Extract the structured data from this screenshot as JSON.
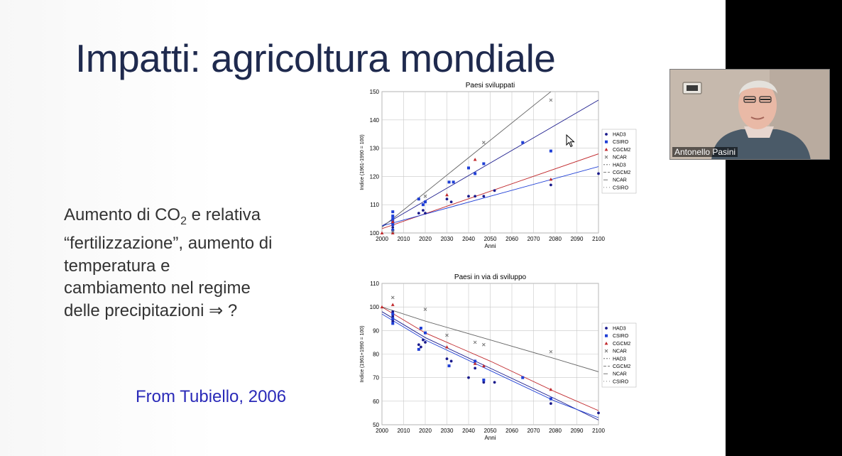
{
  "slide": {
    "title": "Impatti: agricoltura mondiale",
    "body": {
      "line1_pre": "Aumento di CO",
      "line1_sub": "2",
      "line1_post": " e relativa",
      "line2": "“fertilizzazione”, aumento di",
      "line3": "temperatura e",
      "line4": "cambiamento nel regime",
      "line5": "delle precipitazioni ⇒ ?"
    },
    "credit": "From Tubiello, 2006"
  },
  "participant": {
    "name": "Antonello Pasini"
  },
  "colors": {
    "title": "#1f2a4e",
    "credit": "#2a2ab8",
    "HAD3": "#1a1a8c",
    "CSIRO": "#1f3fd6",
    "CGCM2": "#c0282c",
    "NCAR": "#777777"
  },
  "chart_data": [
    {
      "type": "scatter",
      "title": "Paesi sviluppati",
      "xlabel": "Anni",
      "ylabel": "Indice (1961-1990 = 100)",
      "xlim": [
        2000,
        2100
      ],
      "ylim": [
        100,
        150
      ],
      "xticks": [
        "2000",
        "2010",
        "2020",
        "2030",
        "2040",
        "2050",
        "2060",
        "2070",
        "2080",
        "2090",
        "2100"
      ],
      "yticks": [
        "100",
        "110",
        "120",
        "130",
        "140",
        "150"
      ],
      "grid": true,
      "legend_position": "right",
      "legend": [
        "HAD3",
        "CSIRO",
        "CGCM2",
        "NCAR",
        "HAD3",
        "CGCM2",
        "NCAR",
        "CSIRO"
      ],
      "series": [
        {
          "name": "HAD3",
          "marker": "circle",
          "x": [
            2005,
            2005,
            2017,
            2019,
            2020,
            2030,
            2032,
            2040,
            2043,
            2047,
            2052,
            2078,
            2100
          ],
          "y": [
            101,
            102,
            107,
            108,
            107,
            112,
            111,
            113,
            113,
            113,
            115,
            117,
            121
          ]
        },
        {
          "name": "CSIRO",
          "marker": "square",
          "x": [
            2005,
            2005,
            2005,
            2005,
            2005,
            2005,
            2017,
            2019,
            2020,
            2031,
            2033,
            2040,
            2043,
            2047,
            2065,
            2078
          ],
          "y": [
            101,
            103,
            104,
            105,
            106,
            107.5,
            112,
            110,
            111,
            118,
            118,
            123,
            121,
            124.5,
            132,
            129
          ]
        },
        {
          "name": "CGCM2",
          "marker": "triangle",
          "x": [
            2000,
            2005,
            2005,
            2030,
            2043,
            2078
          ],
          "y": [
            100,
            100,
            104,
            113.5,
            126,
            119
          ]
        },
        {
          "name": "NCAR",
          "marker": "x",
          "x": [
            2005,
            2020,
            2047,
            2078
          ],
          "y": [
            100.5,
            113,
            132,
            147
          ]
        }
      ],
      "fit_lines": [
        {
          "name": "HAD3",
          "x": [
            2000,
            2100
          ],
          "y": [
            102.5,
            147
          ]
        },
        {
          "name": "CGCM2",
          "x": [
            2000,
            2100
          ],
          "y": [
            101.5,
            128
          ]
        },
        {
          "name": "NCAR",
          "x": [
            2000,
            2078
          ],
          "y": [
            102,
            150
          ]
        },
        {
          "name": "CSIRO",
          "x": [
            2000,
            2100
          ],
          "y": [
            102.5,
            123.5
          ]
        }
      ]
    },
    {
      "type": "scatter",
      "title": "Paesi in via di sviluppo",
      "xlabel": "Anni",
      "ylabel": "Indice (1961+1990 = 100)",
      "xlim": [
        2000,
        2100
      ],
      "ylim": [
        50,
        110
      ],
      "xticks": [
        "2000",
        "2010",
        "2020",
        "2030",
        "2040",
        "2050",
        "2060",
        "2070",
        "2080",
        "2090",
        "2100"
      ],
      "yticks": [
        "50",
        "60",
        "70",
        "80",
        "90",
        "100",
        "110"
      ],
      "grid": true,
      "legend_position": "right",
      "legend": [
        "HAD3",
        "CSIRO",
        "CGCM2",
        "NCAR",
        "HAD3",
        "CGCM2",
        "NCAR",
        "CSIRO"
      ],
      "series": [
        {
          "name": "HAD3",
          "marker": "circle",
          "x": [
            2005,
            2005,
            2005,
            2017,
            2018,
            2019,
            2020,
            2030,
            2032,
            2040,
            2043,
            2047,
            2052,
            2078,
            2100
          ],
          "y": [
            96,
            94,
            98,
            84,
            83,
            86,
            85,
            78,
            77,
            70,
            74,
            68,
            68,
            59,
            55
          ]
        },
        {
          "name": "CSIRO",
          "marker": "square",
          "x": [
            2005,
            2005,
            2005,
            2017,
            2018,
            2020,
            2031,
            2043,
            2047,
            2065,
            2078
          ],
          "y": [
            93,
            95,
            97,
            82,
            91,
            89,
            75,
            77,
            69,
            70,
            61
          ]
        },
        {
          "name": "CGCM2",
          "marker": "triangle",
          "x": [
            2000,
            2005,
            2030,
            2043,
            2047,
            2078
          ],
          "y": [
            100,
            101,
            83,
            76,
            75,
            65
          ]
        },
        {
          "name": "NCAR",
          "marker": "x",
          "x": [
            2005,
            2020,
            2030,
            2043,
            2047,
            2078
          ],
          "y": [
            104,
            99,
            88,
            85,
            84,
            81
          ]
        }
      ],
      "fit_lines": [
        {
          "name": "HAD3",
          "x": [
            2000,
            2020,
            2050,
            2080,
            2100
          ],
          "y": [
            98,
            87,
            74,
            61,
            52
          ]
        },
        {
          "name": "CGCM2",
          "x": [
            2000,
            2020,
            2050,
            2080,
            2100
          ],
          "y": [
            100,
            89,
            77,
            64,
            56
          ]
        },
        {
          "name": "NCAR",
          "x": [
            2000,
            2020,
            2050,
            2080,
            2100
          ],
          "y": [
            100,
            94,
            86,
            78,
            72.5
          ]
        },
        {
          "name": "CSIRO",
          "x": [
            2000,
            2020,
            2050,
            2080,
            2100
          ],
          "y": [
            97,
            86,
            73,
            60,
            53
          ]
        }
      ]
    }
  ]
}
